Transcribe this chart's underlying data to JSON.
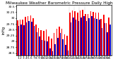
{
  "title": "Milwaukee Weather Barometric Pressure Daily High/Low",
  "ylabel": "inHg",
  "bar_width": 0.42,
  "background_color": "#ffffff",
  "highs": [
    29.89,
    29.93,
    29.94,
    30.04,
    30.08,
    30.11,
    30.0,
    29.71,
    29.56,
    29.48,
    29.46,
    29.5,
    29.2,
    29.12,
    29.35,
    29.55,
    29.62,
    29.55,
    29.3,
    29.25,
    30.22,
    30.32,
    30.28,
    30.22,
    30.32,
    30.34,
    30.18,
    30.18,
    30.28,
    30.25,
    30.22,
    30.22,
    29.95,
    30.15,
    29.78,
    30.02
  ],
  "lows": [
    29.65,
    29.72,
    29.7,
    29.82,
    29.88,
    29.85,
    29.65,
    29.38,
    29.22,
    29.05,
    29.02,
    29.0,
    28.7,
    28.58,
    28.88,
    29.15,
    29.35,
    29.08,
    28.85,
    28.62,
    29.82,
    30.02,
    29.92,
    29.88,
    30.02,
    30.08,
    29.88,
    29.98,
    30.08,
    29.98,
    29.95,
    29.92,
    29.58,
    29.78,
    29.4,
    29.72
  ],
  "high_color": "#ff0000",
  "low_color": "#0000cc",
  "ylim_min": 28.4,
  "ylim_max": 30.55,
  "yticks": [
    28.5,
    28.75,
    29.0,
    29.25,
    29.5,
    29.75,
    30.0,
    30.25,
    30.5
  ],
  "ytick_labels": [
    "28.5",
    "28.75",
    "29",
    "29.25",
    "29.5",
    "29.75",
    "30",
    "30.25",
    "30.5"
  ],
  "tick_labelsize": 3.2,
  "title_fontsize": 4.2,
  "ylabel_fontsize": 3.8,
  "xlabel_fontsize": 3.2,
  "dashed_lines": [
    20,
    22,
    24,
    26
  ]
}
